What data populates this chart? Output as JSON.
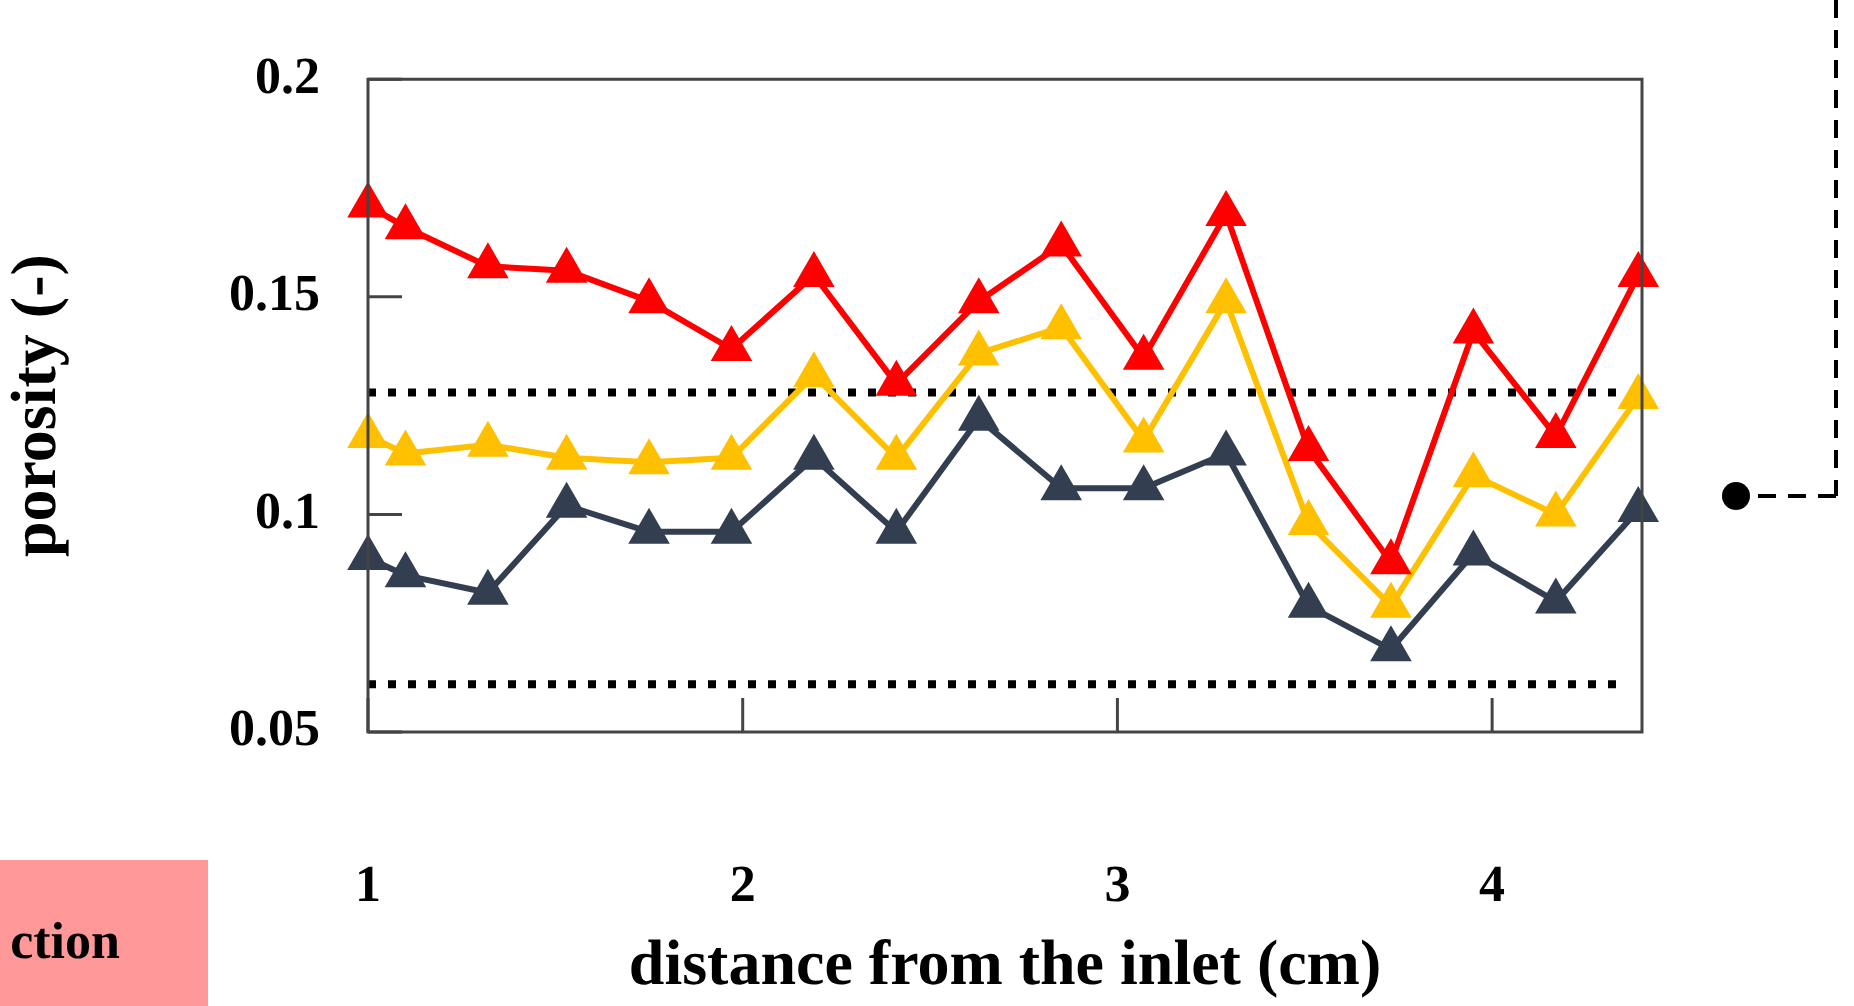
{
  "chart_data": {
    "type": "line",
    "xlabel": "distance from the inlet (cm)",
    "ylabel": "porosity (-)",
    "x": [
      1,
      1.1,
      1.32,
      1.53,
      1.75,
      1.97,
      2.19,
      2.41,
      2.63,
      2.85,
      3.07,
      3.29,
      3.51,
      3.73,
      3.95,
      4.17,
      4.39
    ],
    "series": [
      {
        "color": "#ff0000",
        "values": [
          0.171,
          0.166,
          0.157,
          0.156,
          0.149,
          0.138,
          0.155,
          0.13,
          0.149,
          0.162,
          0.136,
          0.169,
          0.115,
          0.089,
          0.142,
          0.118,
          0.155
        ]
      },
      {
        "color": "#ffc000",
        "values": [
          0.118,
          0.114,
          0.116,
          0.113,
          0.112,
          0.113,
          0.132,
          0.113,
          0.137,
          0.143,
          0.117,
          0.149,
          0.098,
          0.079,
          0.109,
          0.1,
          0.127
        ]
      },
      {
        "color": "#333f50",
        "values": [
          0.09,
          0.086,
          0.082,
          0.102,
          0.096,
          0.096,
          0.113,
          0.096,
          0.122,
          0.106,
          0.106,
          0.114,
          0.079,
          0.069,
          0.091,
          0.08,
          0.101
        ]
      }
    ],
    "xlim": [
      1,
      4.4
    ],
    "xticks": [
      1,
      2,
      3,
      4
    ],
    "ylim": [
      0.05,
      0.2
    ],
    "yticks": [
      0.05,
      0.1,
      0.15,
      0.2
    ],
    "marker": "triangle",
    "line_style": "solid",
    "ref_lines": [
      {
        "axis": "y",
        "value": 0.128,
        "color": "#000000",
        "line_style": "dotted"
      },
      {
        "axis": "y",
        "value": 0.061,
        "color": "#000000",
        "line_style": "dotted"
      }
    ],
    "annotations": [
      "ction"
    ]
  }
}
